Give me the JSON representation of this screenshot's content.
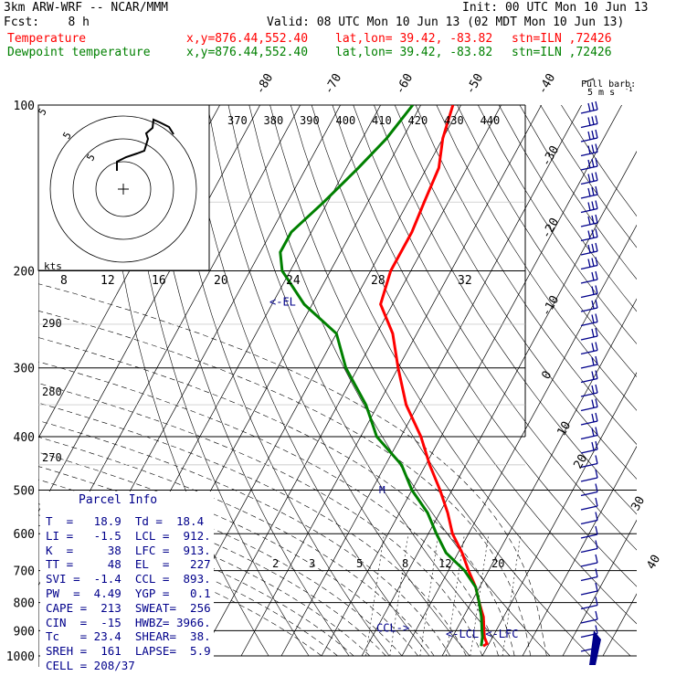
{
  "header": {
    "model": "3km ARW-WRF -- NCAR/MMM",
    "init": "Init: 00 UTC Mon 10 Jun 13",
    "fcst": "Fcst:    8 h",
    "valid": "Valid: 08 UTC Mon 10 Jun 13 (02 MDT Mon 10 Jun 13)",
    "temp_label": "Temperature",
    "dew_label": "Dewpoint temperature",
    "coords": "x,y=876.44,552.40",
    "latlon": "lat,lon= 39.42, -83.82",
    "station": "stn=ILN ,72426",
    "temp_color": "#ff0000",
    "dew_color": "#008000"
  },
  "chart_data": {
    "type": "line",
    "chart_kind": "skew-T log-P sounding",
    "y_axis": {
      "label": "pressure (hPa)",
      "log_scale": true,
      "ticks": [
        100,
        200,
        300,
        400,
        500,
        600,
        700,
        800,
        900,
        1000
      ]
    },
    "temp_ticks": [
      -80,
      -70,
      -60,
      -50,
      -40,
      -30,
      -20,
      -10,
      0,
      10,
      20,
      30,
      40
    ],
    "theta_labels_top": [
      370,
      380,
      390,
      400,
      410,
      420,
      430,
      440
    ],
    "theta_labels_left": [
      290,
      280,
      270
    ],
    "mixing_ratio_labels": [
      2,
      3,
      5,
      8,
      12,
      20
    ],
    "series": [
      {
        "name": "Temperature",
        "color": "#ff0000",
        "points": [
          [
            100,
            -62
          ],
          [
            115,
            -60
          ],
          [
            130,
            -57
          ],
          [
            150,
            -56
          ],
          [
            170,
            -55
          ],
          [
            200,
            -55
          ],
          [
            230,
            -53
          ],
          [
            260,
            -46
          ],
          [
            300,
            -40
          ],
          [
            350,
            -33
          ],
          [
            400,
            -25
          ],
          [
            450,
            -19
          ],
          [
            500,
            -13
          ],
          [
            550,
            -8
          ],
          [
            600,
            -4
          ],
          [
            650,
            1
          ],
          [
            700,
            5
          ],
          [
            750,
            9
          ],
          [
            800,
            12
          ],
          [
            850,
            15
          ],
          [
            900,
            17
          ],
          [
            925,
            18
          ],
          [
            950,
            19.5
          ],
          [
            960,
            18.9
          ]
        ]
      },
      {
        "name": "Dewpoint temperature",
        "color": "#008000",
        "points": [
          [
            100,
            -72
          ],
          [
            115,
            -74
          ],
          [
            130,
            -77
          ],
          [
            150,
            -81
          ],
          [
            170,
            -85
          ],
          [
            185,
            -85
          ],
          [
            200,
            -82
          ],
          [
            230,
            -72
          ],
          [
            260,
            -60
          ],
          [
            300,
            -53
          ],
          [
            350,
            -43
          ],
          [
            400,
            -36
          ],
          [
            450,
            -26
          ],
          [
            500,
            -20
          ],
          [
            550,
            -13
          ],
          [
            600,
            -8
          ],
          [
            650,
            -3
          ],
          [
            700,
            4
          ],
          [
            750,
            9
          ],
          [
            800,
            12
          ],
          [
            850,
            14.5
          ],
          [
            900,
            16.5
          ],
          [
            925,
            17.5
          ],
          [
            960,
            18.4
          ]
        ]
      }
    ],
    "annotations": [
      {
        "text": "<-EL",
        "p": 227
      },
      {
        "text": "<-LCL <-LFC",
        "p": 912
      },
      {
        "text": "CCL->",
        "p": 893
      }
    ],
    "hodograph": {
      "unit_label": "kts",
      "ring_labels": [
        "5",
        "5",
        "5"
      ],
      "outer_labels": [
        "12",
        "16",
        "20",
        "24",
        "28",
        "32"
      ],
      "left_label": "8"
    },
    "wind_barb_label": "Full barb:",
    "wind_barb_unit": "5 m s",
    "wind_barb_unit_exp": "-1"
  },
  "parcel": {
    "title": "Parcel Info",
    "rows": [
      "T  =   18.9  Td =  18.4",
      "LI =   -1.5  LCL =  912.",
      "K  =     38  LFC =  913.",
      "TT =     48  EL  =   227",
      "SVI =  -1.4  CCL =  893.",
      "PW  =  4.49  YGP =   0.1",
      "CAPE =  213  SWEAT=  256",
      "CIN  =  -15  HWBZ= 3966.",
      "Tc   = 23.4  SHEAR=  38.",
      "SREH =  161  LAPSE=  5.9",
      "CELL = 208/37"
    ]
  }
}
